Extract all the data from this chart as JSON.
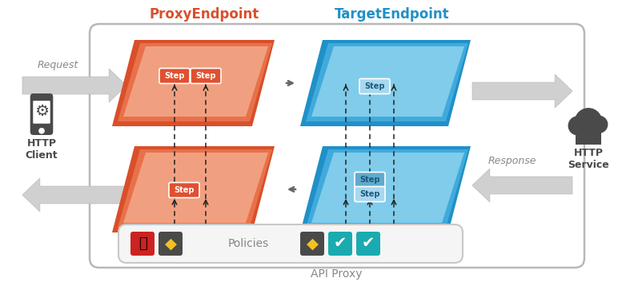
{
  "title": "API Proxy",
  "proxy_endpoint_label": "ProxyEndpoint",
  "target_endpoint_label": "TargetEndpoint",
  "proxy_color_dark": "#D94F2A",
  "proxy_color_mid": "#E8714A",
  "proxy_color_light": "#F0A080",
  "target_color_dark": "#2090C8",
  "target_color_mid": "#40AADC",
  "target_color_light": "#80CCEA",
  "step_bg_proxy_dark": "#E05030",
  "step_bg_proxy_light": "#F09080",
  "step_bg_target_dark": "#60AACC",
  "step_bg_target_light": "#A8D8EE",
  "step_text_proxy": "#FFFFFF",
  "step_text_target": "#1A5A80",
  "arrow_fill": "#D0D0D0",
  "arrow_edge": "#AAAAAA",
  "dashed_color": "#222222",
  "box_bg": "#FFFFFF",
  "box_border": "#C0C0C0",
  "icon_lock_bg": "#CC2222",
  "icon_diamond_bg": "#4A4A4A",
  "icon_teal_bg": "#1AABB0",
  "text_proxy_color": "#D94F2A",
  "text_target_color": "#2090C8",
  "text_gray": "#888888",
  "text_dark": "#4A4A4A",
  "http_client_label": "HTTP\nClient",
  "http_service_label": "HTTP\nService",
  "request_label": "Request",
  "response_label": "Response",
  "policies_label": "Policies",
  "step_label": "Step"
}
